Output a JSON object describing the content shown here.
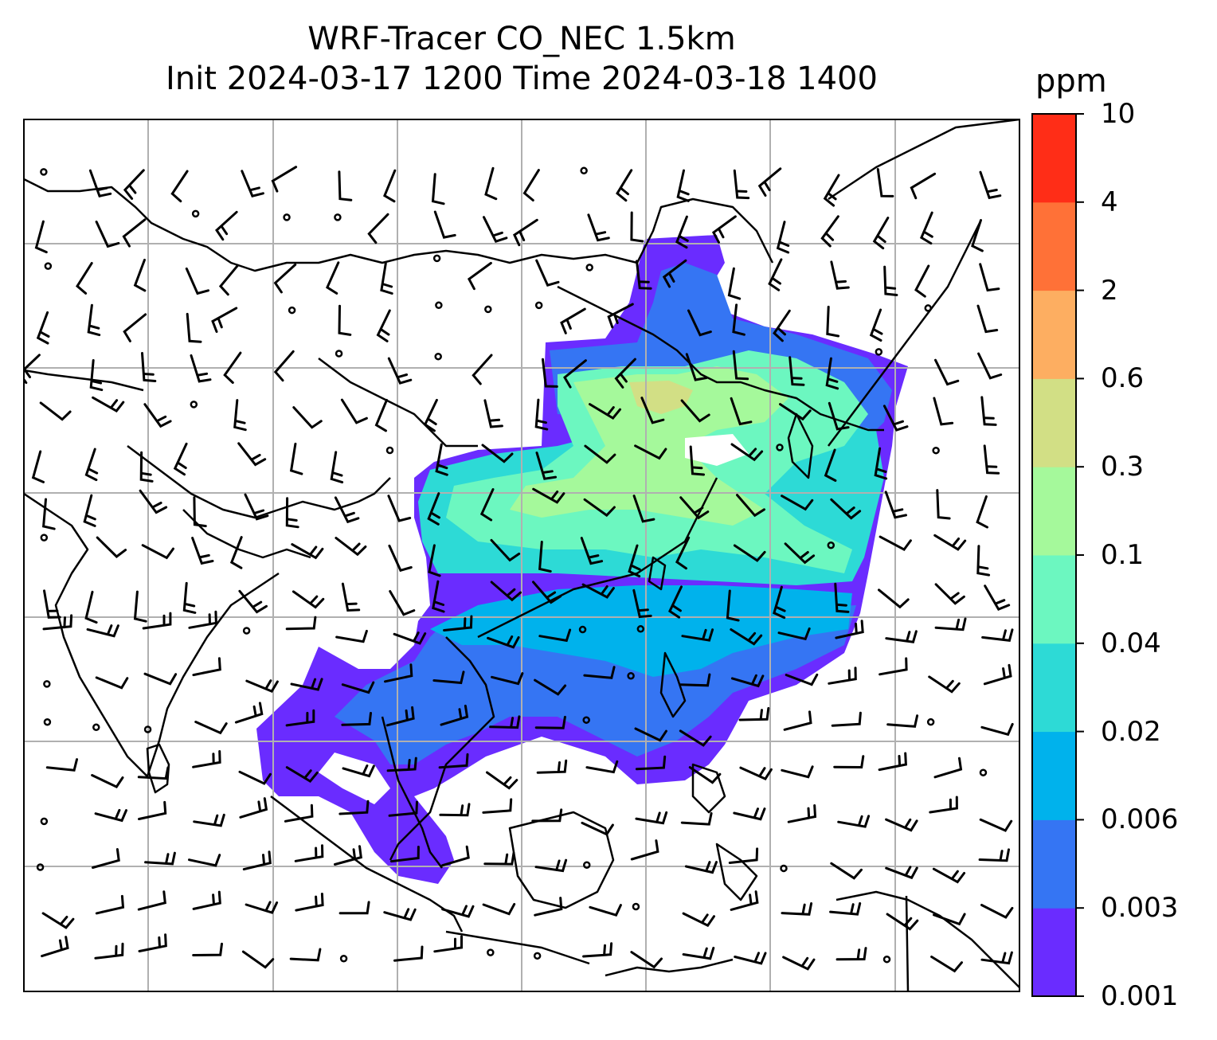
{
  "title": {
    "line1": "WRF-Tracer CO_NEC 1.5km",
    "line2": "Init 2024-03-17 1200 Time 2024-03-18 1400"
  },
  "colorbar": {
    "unit": "ppm",
    "levels": [
      "0.001",
      "0.003",
      "0.006",
      "0.02",
      "0.04",
      "0.1",
      "0.3",
      "0.6",
      "2",
      "4",
      "10"
    ],
    "colors": [
      "#6a2cff",
      "#3575f3",
      "#00b2ec",
      "#2ddad6",
      "#6cf7c0",
      "#a5f99b",
      "#d2df85",
      "#fdae61",
      "#ff7137",
      "#ff2d17"
    ]
  },
  "map": {
    "gridlines": true,
    "gridline_color": "#b0b0b0",
    "coastline_color": "#000000",
    "barb_color": "#000000"
  }
}
